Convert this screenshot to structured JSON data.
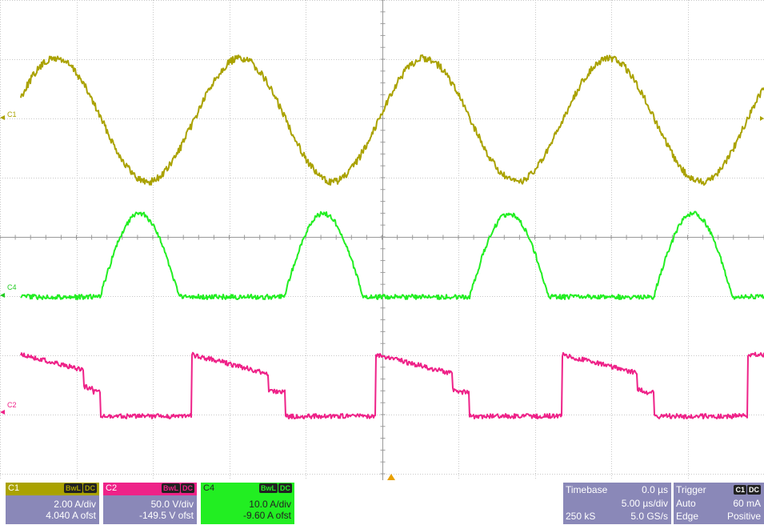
{
  "colors": {
    "c1": "#aaa200",
    "c4": "#22ee22",
    "c2": "#ee2288",
    "info_bg": "#8a88b8",
    "grid": "#bbbbbb",
    "trigger_marker": "#e8a000"
  },
  "traces": {
    "c1_label": "C1",
    "c4_label": "C4",
    "c2_label": "C2"
  },
  "channels": [
    {
      "name": "C1",
      "bw": "BwL",
      "coupling": "DC",
      "scale": "2.00 A/div",
      "offset": "4.040 A ofst"
    },
    {
      "name": "C2",
      "bw": "BwL",
      "coupling": "DC",
      "scale": "50.0 V/div",
      "offset": "-149.5 V ofst"
    },
    {
      "name": "C4",
      "bw": "BwL",
      "coupling": "DC",
      "scale": "10.0 A/div",
      "offset": "-9.60 A ofst"
    }
  ],
  "timebase": {
    "label": "Timebase",
    "delay": "0.0 µs",
    "per_div": "5.00 µs/div",
    "samples": "250 kS",
    "rate": "5.0 GS/s"
  },
  "trigger": {
    "label": "Trigger",
    "source": "C1",
    "coupling": "DC",
    "mode": "Auto",
    "level": "60 mA",
    "type": "Edge",
    "slope": "Positive"
  }
}
